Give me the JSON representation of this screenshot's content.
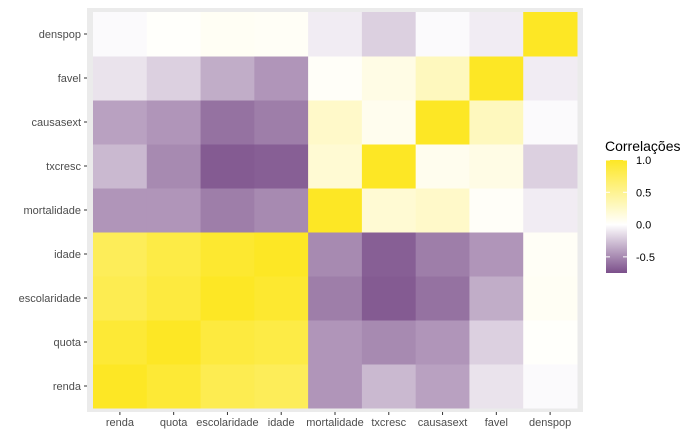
{
  "chart_data": {
    "type": "heatmap",
    "x_labels": [
      "renda",
      "quota",
      "escolaridade",
      "idade",
      "mortalidade",
      "txcresc",
      "causasext",
      "favel",
      "denspop"
    ],
    "y_labels": [
      "renda",
      "quota",
      "escolaridade",
      "idade",
      "mortalidade",
      "txcresc",
      "causasext",
      "favel",
      "denspop"
    ],
    "values": [
      [
        1.0,
        0.92,
        0.8,
        0.76,
        -0.45,
        -0.3,
        -0.4,
        -0.12,
        -0.02
      ],
      [
        0.92,
        1.0,
        0.88,
        0.85,
        -0.45,
        -0.5,
        -0.45,
        -0.2,
        0.02
      ],
      [
        0.8,
        0.88,
        1.0,
        0.95,
        -0.55,
        -0.7,
        -0.6,
        -0.35,
        0.05
      ],
      [
        0.76,
        0.85,
        0.95,
        1.0,
        -0.5,
        -0.68,
        -0.55,
        -0.45,
        0.04
      ],
      [
        -0.45,
        -0.45,
        -0.55,
        -0.5,
        1.0,
        0.2,
        0.25,
        0.03,
        -0.08
      ],
      [
        -0.3,
        -0.5,
        -0.7,
        -0.68,
        0.2,
        1.0,
        0.08,
        0.12,
        -0.2
      ],
      [
        -0.4,
        -0.45,
        -0.6,
        -0.55,
        0.25,
        0.08,
        1.0,
        0.3,
        -0.02
      ],
      [
        -0.12,
        -0.2,
        -0.35,
        -0.45,
        0.03,
        0.12,
        0.3,
        1.0,
        -0.08
      ],
      [
        -0.02,
        0.02,
        0.05,
        0.04,
        -0.08,
        -0.2,
        -0.02,
        -0.08,
        1.0
      ]
    ],
    "value_range": [
      -0.75,
      1.0
    ],
    "legend": {
      "title": "Correlações",
      "ticks": [
        1.0,
        0.5,
        0.0,
        -0.5
      ],
      "tick_labels": [
        "1.0",
        "0.5",
        "0.0",
        "-0.5"
      ],
      "placement": "right"
    },
    "colors": {
      "low": "#7b4f8a",
      "mid": "#ffffff",
      "high": "#fde725"
    },
    "panel_background": "#ebebeb",
    "grid": true
  }
}
